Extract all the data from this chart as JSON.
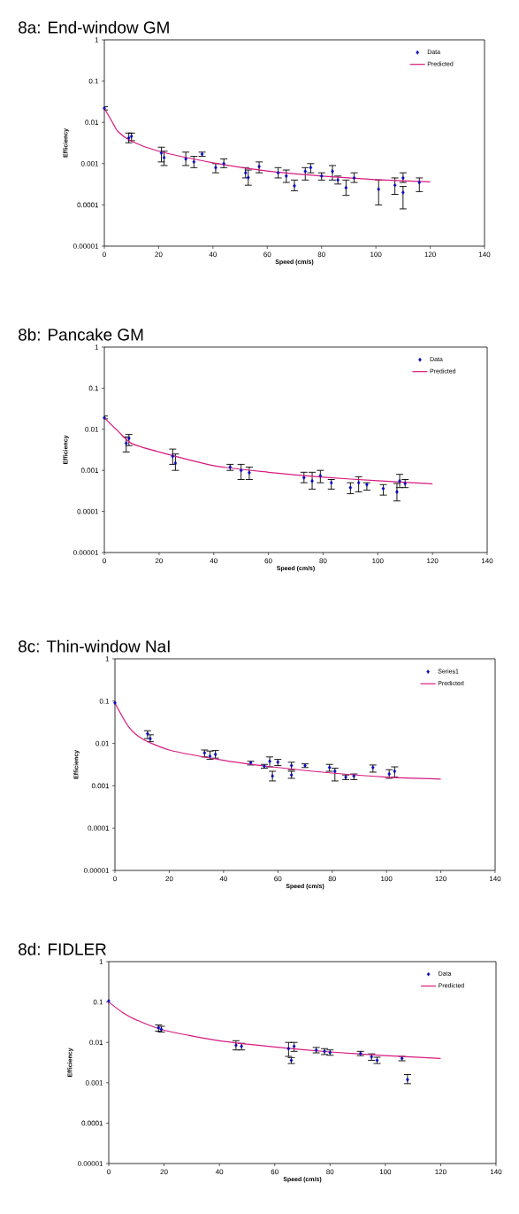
{
  "chart_data": [
    {
      "type": "scatter",
      "title": "8a:  End-window GM",
      "xlabel": "Speed (cm/s)",
      "ylabel": "Efficiency",
      "log": "y",
      "marker": "diamond",
      "legend": "top right",
      "xlim": [
        0,
        140
      ],
      "xticks": [
        0,
        20,
        40,
        60,
        80,
        100,
        120,
        140
      ],
      "ylim": [
        1e-05,
        1
      ],
      "yticks": [
        {
          "value": 1e-05,
          "label": "0.00001"
        },
        {
          "value": 0.0001,
          "label": "0.0001"
        },
        {
          "value": 0.001,
          "label": "0.001"
        },
        {
          "value": 0.01,
          "label": "0.01"
        },
        {
          "value": 0.1,
          "label": "0.1"
        },
        {
          "value": 1,
          "label": "1"
        }
      ],
      "series": [
        {
          "name": "Data",
          "color": "#2e3192",
          "x": [
            0,
            9,
            10,
            21,
            22,
            30,
            33,
            36,
            41,
            44,
            52,
            53,
            57,
            64,
            67,
            70,
            74,
            76,
            80,
            84,
            86,
            89,
            92,
            101,
            107,
            110,
            110,
            116
          ],
          "values": [
            0.022,
            0.0042,
            0.0046,
            0.0018,
            0.0014,
            0.0013,
            0.0011,
            0.0017,
            0.0008,
            0.001,
            0.0006,
            0.00046,
            0.00085,
            0.0006,
            0.0005,
            0.00029,
            0.00065,
            0.0008,
            0.0005,
            0.00065,
            0.0004,
            0.00026,
            0.00045,
            0.00024,
            0.0003,
            0.00045,
            0.0002,
            0.00035
          ],
          "errors": [
            [
              0.02,
              0.024
            ],
            [
              0.0032,
              0.0055
            ],
            [
              0.0036,
              0.0055
            ],
            [
              0.0011,
              0.0025
            ],
            [
              0.0009,
              0.002
            ],
            [
              0.0009,
              0.0019
            ],
            [
              0.0008,
              0.0015
            ],
            [
              0.0015,
              0.0019
            ],
            [
              0.0006,
              0.001
            ],
            [
              0.0008,
              0.0013
            ],
            [
              0.00045,
              0.0008
            ],
            [
              0.0003,
              0.0007
            ],
            [
              0.0006,
              0.0011
            ],
            [
              0.00045,
              0.0008
            ],
            [
              0.00035,
              0.0007
            ],
            [
              0.00022,
              0.0004
            ],
            [
              0.0004,
              0.0008
            ],
            [
              0.0006,
              0.001
            ],
            [
              0.0004,
              0.0006
            ],
            [
              0.0004,
              0.0009
            ],
            [
              0.00032,
              0.0005
            ],
            [
              0.00017,
              0.0004
            ],
            [
              0.00035,
              0.0006
            ],
            [
              0.0001,
              0.0004
            ],
            [
              0.00018,
              0.00045
            ],
            [
              0.00035,
              0.0006
            ],
            [
              8e-05,
              0.00028
            ],
            [
              0.00021,
              0.00045
            ]
          ]
        },
        {
          "name": "Predicted",
          "type": "line",
          "marker": "none",
          "color": "#d6197e",
          "x": [
            0,
            3,
            5,
            10,
            20,
            40,
            60,
            80,
            100,
            120
          ],
          "values": [
            0.022,
            0.01,
            0.006,
            0.0035,
            0.002,
            0.00105,
            0.00066,
            0.0005,
            0.00041,
            0.00036
          ]
        }
      ]
    },
    {
      "type": "scatter",
      "title": "8b:  Pancake GM",
      "xlabel": "Speed (cm/s)",
      "ylabel": "Efficiency",
      "log": "y",
      "marker": "diamond",
      "legend": "top right",
      "xlim": [
        0,
        140
      ],
      "xticks": [
        0,
        20,
        40,
        60,
        80,
        100,
        120,
        140
      ],
      "ylim": [
        1e-05,
        1
      ],
      "yticks": [
        {
          "value": 1e-05,
          "label": "0.00001"
        },
        {
          "value": 0.0001,
          "label": "0.0001"
        },
        {
          "value": 0.001,
          "label": "0.001"
        },
        {
          "value": 0.01,
          "label": "0.01"
        },
        {
          "value": 0.1,
          "label": "0.1"
        },
        {
          "value": 1,
          "label": "1"
        }
      ],
      "series": [
        {
          "name": "Data",
          "color": "#2e3192",
          "x": [
            0,
            8,
            9,
            25,
            26,
            46,
            50,
            53,
            73,
            76,
            79,
            83,
            90,
            93,
            96,
            102,
            107,
            108,
            110
          ],
          "values": [
            0.019,
            0.0046,
            0.006,
            0.0022,
            0.0015,
            0.0012,
            0.001,
            0.00088,
            0.00066,
            0.00055,
            0.00074,
            0.0005,
            0.00038,
            0.0005,
            0.00045,
            0.00036,
            0.0003,
            0.00055,
            0.00048
          ],
          "errors": [
            [
              0.018,
              0.021
            ],
            [
              0.0028,
              0.0065
            ],
            [
              0.004,
              0.0075
            ],
            [
              0.0014,
              0.0033
            ],
            [
              0.001,
              0.0025
            ],
            [
              0.001,
              0.0014
            ],
            [
              0.0006,
              0.0014
            ],
            [
              0.0006,
              0.0012
            ],
            [
              0.0005,
              0.0009
            ],
            [
              0.00035,
              0.0009
            ],
            [
              0.0005,
              0.001
            ],
            [
              0.00035,
              0.0006
            ],
            [
              0.00027,
              0.0005
            ],
            [
              0.0003,
              0.0007
            ],
            [
              0.00033,
              0.0005
            ],
            [
              0.00025,
              0.00045
            ],
            [
              0.00018,
              0.00048
            ],
            [
              0.00038,
              0.0008
            ],
            [
              0.00038,
              0.0006
            ]
          ]
        },
        {
          "name": "Predicted",
          "type": "line",
          "marker": "none",
          "color": "#d6197e",
          "x": [
            0,
            5,
            10,
            20,
            40,
            60,
            80,
            100,
            120
          ],
          "values": [
            0.019,
            0.009,
            0.0045,
            0.0028,
            0.0013,
            0.0009,
            0.00068,
            0.00056,
            0.00047
          ]
        }
      ]
    },
    {
      "type": "scatter",
      "title": "8c:  Thin-window NaI",
      "xlabel": "Speed (cm/s)",
      "ylabel": "Efficiency",
      "log": "y",
      "marker": "diamond",
      "legend": "top right",
      "xlim": [
        0,
        140
      ],
      "xticks": [
        0,
        20,
        40,
        60,
        80,
        100,
        120,
        140
      ],
      "ylim": [
        1e-05,
        1
      ],
      "yticks": [
        {
          "value": 1e-05,
          "label": "0.00001"
        },
        {
          "value": 0.0001,
          "label": "0.0001"
        },
        {
          "value": 0.001,
          "label": "0.001"
        },
        {
          "value": 0.01,
          "label": "0.01"
        },
        {
          "value": 0.1,
          "label": "0.1"
        },
        {
          "value": 1,
          "label": "1"
        }
      ],
      "series": [
        {
          "name": "Series1",
          "color": "#2e3192",
          "x": [
            0,
            12,
            13,
            33,
            35,
            37,
            50,
            55,
            57,
            58,
            60,
            65,
            65,
            70,
            79,
            81,
            85,
            88,
            95,
            101,
            103
          ],
          "values": [
            0.091,
            0.017,
            0.013,
            0.006,
            0.005,
            0.0055,
            0.0035,
            0.0029,
            0.0038,
            0.0017,
            0.0036,
            0.003,
            0.0018,
            0.003,
            0.0027,
            0.0022,
            0.0016,
            0.0017,
            0.0027,
            0.0019,
            0.0022
          ],
          "errors": [
            null,
            [
              0.013,
              0.02
            ],
            [
              0.011,
              0.016
            ],
            [
              0.0048,
              0.007
            ],
            [
              0.0042,
              0.0066
            ],
            [
              0.0045,
              0.0068
            ],
            [
              0.0031,
              0.0038
            ],
            [
              0.0026,
              0.0032
            ],
            [
              0.0028,
              0.0048
            ],
            [
              0.0013,
              0.0022
            ],
            [
              0.003,
              0.0042
            ],
            [
              0.0024,
              0.0036
            ],
            [
              0.0015,
              0.0022
            ],
            [
              0.0027,
              0.0033
            ],
            [
              0.0022,
              0.0032
            ],
            [
              0.0013,
              0.0026
            ],
            [
              0.0014,
              0.0018
            ],
            [
              0.0014,
              0.0019
            ],
            [
              0.0021,
              0.0031
            ],
            [
              0.0015,
              0.0024
            ],
            [
              0.0016,
              0.0028
            ]
          ]
        },
        {
          "name": "Predicted",
          "type": "line",
          "marker": "none",
          "color": "#d6197e",
          "x": [
            0,
            5,
            10,
            20,
            40,
            60,
            80,
            100,
            120
          ],
          "values": [
            0.09,
            0.025,
            0.013,
            0.007,
            0.004,
            0.0027,
            0.002,
            0.0016,
            0.00144
          ]
        }
      ]
    },
    {
      "type": "scatter",
      "title": "8d:  FIDLER",
      "xlabel": "Speed (cm/s)",
      "ylabel": "Efficiency",
      "log": "y",
      "marker": "diamond",
      "legend": "top right",
      "xlim": [
        0,
        140
      ],
      "xticks": [
        0,
        20,
        40,
        60,
        80,
        100,
        120,
        140
      ],
      "ylim": [
        1e-05,
        1
      ],
      "yticks": [
        {
          "value": 1e-05,
          "label": "0.00001"
        },
        {
          "value": 0.0001,
          "label": "0.0001"
        },
        {
          "value": 0.001,
          "label": "0.001"
        },
        {
          "value": 0.01,
          "label": "0.01"
        },
        {
          "value": 0.1,
          "label": "0.1"
        },
        {
          "value": 1,
          "label": "1"
        }
      ],
      "series": [
        {
          "name": "Data",
          "color": "#2e3192",
          "x": [
            0,
            18,
            19,
            46,
            48,
            65,
            66,
            67,
            75,
            78,
            80,
            91,
            95,
            97,
            106,
            108
          ],
          "values": [
            0.106,
            0.023,
            0.021,
            0.0085,
            0.008,
            0.007,
            0.0036,
            0.008,
            0.0064,
            0.006,
            0.0056,
            0.0053,
            0.0044,
            0.0036,
            0.004,
            0.0012
          ],
          "errors": [
            null,
            [
              0.019,
              0.027
            ],
            [
              0.018,
              0.025
            ],
            [
              0.0065,
              0.011
            ],
            [
              0.0065,
              0.0095
            ],
            [
              0.0045,
              0.01
            ],
            [
              0.003,
              0.0042
            ],
            [
              0.006,
              0.01
            ],
            [
              0.0055,
              0.0075
            ],
            [
              0.005,
              0.007
            ],
            [
              0.0048,
              0.0065
            ],
            [
              0.0047,
              0.006
            ],
            [
              0.0036,
              0.0052
            ],
            [
              0.003,
              0.0043
            ],
            [
              0.0035,
              0.0045
            ],
            [
              0.00095,
              0.0016
            ]
          ]
        },
        {
          "name": "Predicted",
          "type": "line",
          "marker": "none",
          "color": "#d6197e",
          "x": [
            0,
            5,
            10,
            20,
            40,
            60,
            80,
            100,
            120
          ],
          "values": [
            0.1,
            0.055,
            0.036,
            0.02,
            0.011,
            0.0077,
            0.0058,
            0.0047,
            0.004
          ]
        }
      ]
    }
  ]
}
